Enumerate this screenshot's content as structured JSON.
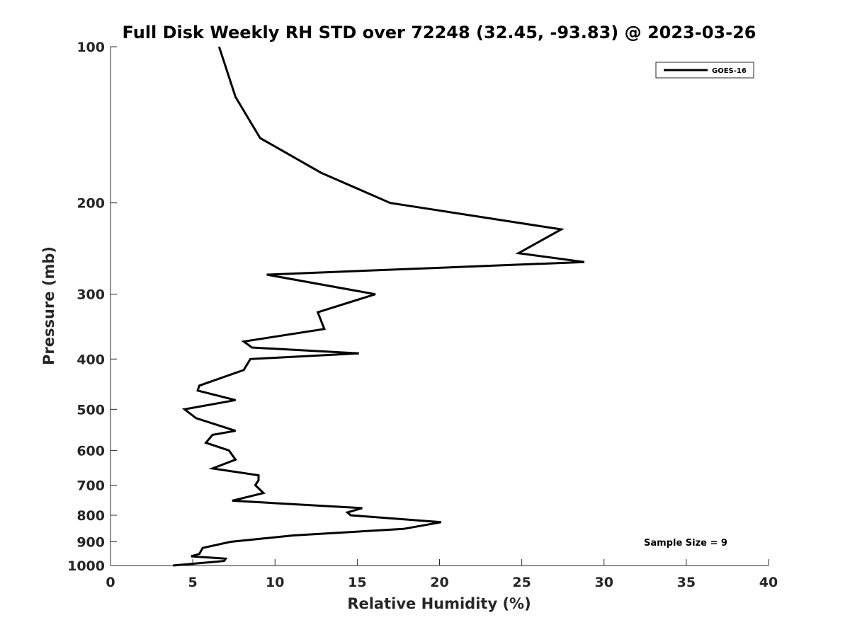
{
  "chart_data": {
    "type": "line",
    "title": "Full Disk Weekly RH STD over 72248 (32.45, -93.83) @ 2023-03-26",
    "xlabel": "Relative Humidity (%)",
    "ylabel": "Pressure (mb)",
    "xlim": [
      0,
      40
    ],
    "ylim": [
      100,
      1000
    ],
    "yscale": "log",
    "y_reversed": true,
    "xticks": [
      0,
      5,
      10,
      15,
      20,
      25,
      30,
      35,
      40
    ],
    "yticks": [
      100,
      200,
      300,
      400,
      500,
      600,
      700,
      800,
      900,
      1000
    ],
    "grid": false,
    "legend_position": "top-right",
    "annotation": "Sample Size = 9",
    "series": [
      {
        "name": "GOES-16",
        "color": "#000000",
        "x": [
          6.6,
          7.6,
          9.1,
          12.8,
          17.0,
          27.4,
          24.8,
          28.8,
          9.5,
          16.1,
          12.6,
          13.0,
          8.1,
          8.6,
          15.1,
          8.5,
          8.1,
          5.4,
          5.3,
          7.6,
          4.5,
          5.2,
          7.6,
          6.2,
          5.8,
          7.2,
          7.6,
          6.2,
          9.0,
          9.0,
          8.8,
          9.3,
          7.4,
          15.3,
          14.4,
          14.6,
          20.1,
          17.8,
          11.1,
          7.3,
          5.6,
          5.4,
          4.9,
          7.0,
          6.9,
          3.8
        ],
        "y": [
          100,
          125,
          150,
          175,
          200,
          225,
          250,
          260,
          275,
          300,
          325,
          350,
          370,
          380,
          390,
          400,
          420,
          450,
          460,
          480,
          500,
          520,
          550,
          560,
          580,
          600,
          625,
          650,
          670,
          685,
          700,
          725,
          750,
          775,
          790,
          800,
          825,
          850,
          875,
          900,
          925,
          950,
          960,
          970,
          980,
          1000
        ]
      }
    ]
  }
}
